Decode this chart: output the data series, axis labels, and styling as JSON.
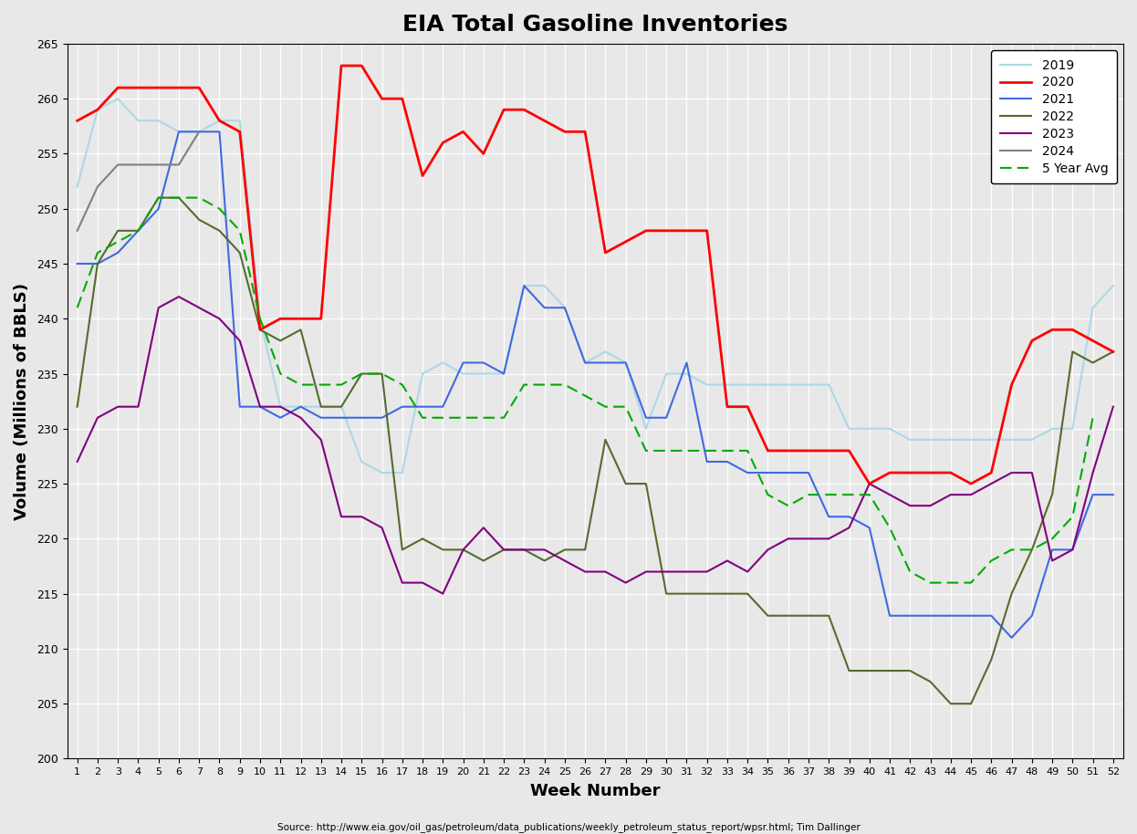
{
  "title": "EIA Total Gasoline Inventories",
  "xlabel": "Week Number",
  "ylabel": "Volume (Millions of BBLS)",
  "source": "Source: http://www.eia.gov/oil_gas/petroleum/data_publications/weekly_petroleum_status_report/wpsr.html; Tim Dallinger",
  "ylim": [
    200,
    265
  ],
  "weeks": [
    1,
    2,
    3,
    4,
    5,
    6,
    7,
    8,
    9,
    10,
    11,
    12,
    13,
    14,
    15,
    16,
    17,
    18,
    19,
    20,
    21,
    22,
    23,
    24,
    25,
    26,
    27,
    28,
    29,
    30,
    31,
    32,
    33,
    34,
    35,
    36,
    37,
    38,
    39,
    40,
    41,
    42,
    43,
    44,
    45,
    46,
    47,
    48,
    49,
    50,
    51,
    52
  ],
  "series_2019": [
    252,
    259,
    260,
    258,
    258,
    257,
    257,
    258,
    258,
    240,
    232,
    232,
    232,
    232,
    227,
    226,
    226,
    235,
    236,
    235,
    235,
    235,
    243,
    243,
    241,
    236,
    237,
    236,
    230,
    235,
    235,
    234,
    234,
    234,
    234,
    234,
    234,
    234,
    230,
    230,
    230,
    229,
    229,
    229,
    229,
    229,
    229,
    229,
    230,
    230,
    241,
    243
  ],
  "series_2020": [
    258,
    259,
    261,
    261,
    261,
    261,
    261,
    258,
    257,
    239,
    240,
    240,
    240,
    263,
    263,
    260,
    260,
    253,
    256,
    257,
    255,
    259,
    259,
    258,
    257,
    257,
    246,
    247,
    248,
    248,
    248,
    248,
    232,
    232,
    228,
    228,
    228,
    228,
    228,
    225,
    226,
    226,
    226,
    226,
    225,
    226,
    234,
    238,
    239,
    239,
    238,
    237
  ],
  "series_2021": [
    245,
    245,
    246,
    248,
    250,
    257,
    257,
    257,
    232,
    232,
    231,
    232,
    231,
    231,
    231,
    231,
    232,
    232,
    232,
    236,
    236,
    235,
    243,
    241,
    241,
    236,
    236,
    236,
    231,
    231,
    236,
    227,
    227,
    226,
    226,
    226,
    226,
    222,
    222,
    221,
    213,
    213,
    213,
    213,
    213,
    213,
    211,
    213,
    219,
    219,
    224,
    224
  ],
  "series_2022": [
    232,
    245,
    248,
    248,
    251,
    251,
    249,
    248,
    246,
    239,
    238,
    239,
    232,
    232,
    235,
    235,
    219,
    220,
    219,
    219,
    218,
    219,
    219,
    218,
    219,
    219,
    229,
    225,
    225,
    215,
    215,
    215,
    215,
    215,
    213,
    213,
    213,
    213,
    208,
    208,
    208,
    208,
    207,
    205,
    205,
    209,
    215,
    219,
    224,
    237,
    236,
    237
  ],
  "series_2023": [
    227,
    231,
    232,
    232,
    241,
    242,
    241,
    240,
    238,
    232,
    232,
    231,
    229,
    222,
    222,
    221,
    216,
    216,
    215,
    219,
    221,
    219,
    219,
    219,
    218,
    217,
    217,
    216,
    217,
    217,
    217,
    217,
    218,
    217,
    219,
    220,
    220,
    220,
    221,
    225,
    224,
    223,
    223,
    224,
    224,
    225,
    226,
    226,
    218,
    219,
    226,
    232
  ],
  "series_2024": [
    248,
    252,
    254,
    254,
    254,
    254,
    257,
    null,
    null,
    null,
    null,
    null,
    null,
    null,
    null,
    null,
    null,
    null,
    null,
    null,
    null,
    null,
    null,
    null,
    null,
    null,
    null,
    null,
    null,
    null,
    null,
    null,
    null,
    null,
    null,
    null,
    null,
    null,
    null,
    null,
    null,
    null,
    null,
    null,
    null,
    null,
    null,
    null,
    null,
    null,
    null,
    null
  ],
  "series_5yr_avg": [
    241,
    246,
    247,
    248,
    251,
    251,
    251,
    250,
    248,
    240,
    235,
    234,
    234,
    234,
    235,
    235,
    234,
    231,
    231,
    231,
    231,
    231,
    234,
    234,
    234,
    233,
    232,
    232,
    228,
    228,
    228,
    228,
    228,
    228,
    224,
    223,
    224,
    224,
    224,
    224,
    221,
    217,
    216,
    216,
    216,
    218,
    219,
    219,
    220,
    222,
    231,
    null
  ],
  "color_2019": "#add8e6",
  "color_2020": "#ff0000",
  "color_2021": "#4169e1",
  "color_2022": "#556b2f",
  "color_2023": "#800080",
  "color_2024": "#808080",
  "color_5yr_avg": "#00aa00",
  "bg_color": "#e8e8e8",
  "grid_color": "#ffffff",
  "lw_main": 1.5,
  "lw_2020": 2.0
}
